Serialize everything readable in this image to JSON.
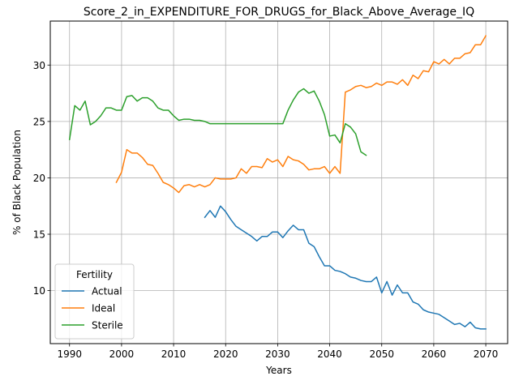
{
  "chart_data": {
    "type": "line",
    "title": "Score_2_in_EXPENDITURE_FOR_DRUGS_for_Black_Above_Average_IQ",
    "xlabel": "Years",
    "ylabel": "% of Black Population",
    "xlim": [
      1986.3,
      2074.2
    ],
    "ylim": [
      5.3,
      33.9
    ],
    "xticks": [
      1990,
      2000,
      2010,
      2020,
      2030,
      2040,
      2050,
      2060,
      2070
    ],
    "yticks": [
      10,
      15,
      20,
      25,
      30
    ],
    "grid": true,
    "legend": {
      "title": "Fertility",
      "location": "lower-left"
    },
    "series": [
      {
        "name": "Actual",
        "color": "#1f77b4",
        "x": [
          2016,
          2017,
          2018,
          2019,
          2020,
          2021,
          2022,
          2023,
          2024,
          2025,
          2026,
          2027,
          2028,
          2029,
          2030,
          2031,
          2032,
          2033,
          2034,
          2035,
          2036,
          2037,
          2038,
          2039,
          2040,
          2041,
          2042,
          2043,
          2044,
          2045,
          2046,
          2047,
          2048,
          2049,
          2050,
          2051,
          2052,
          2053,
          2054,
          2055,
          2056,
          2057,
          2058,
          2059,
          2060,
          2061,
          2062,
          2063,
          2064,
          2065,
          2066,
          2067,
          2068,
          2069,
          2070
        ],
        "y": [
          16.5,
          17.1,
          16.5,
          17.5,
          17.0,
          16.3,
          15.7,
          15.4,
          15.1,
          14.8,
          14.4,
          14.8,
          14.8,
          15.2,
          15.2,
          14.7,
          15.3,
          15.8,
          15.4,
          15.4,
          14.2,
          13.9,
          13.0,
          12.2,
          12.2,
          11.8,
          11.7,
          11.5,
          11.2,
          11.1,
          10.9,
          10.8,
          10.8,
          11.2,
          9.8,
          10.8,
          9.6,
          10.5,
          9.8,
          9.8,
          9.0,
          8.8,
          8.3,
          8.1,
          8.0,
          7.9,
          7.6,
          7.3,
          7.0,
          7.1,
          6.8,
          7.2,
          6.7,
          6.6,
          6.6
        ]
      },
      {
        "name": "Ideal",
        "color": "#ff7f0e",
        "x": [
          1999,
          2000,
          2001,
          2002,
          2003,
          2004,
          2005,
          2006,
          2007,
          2008,
          2009,
          2010,
          2011,
          2012,
          2013,
          2014,
          2015,
          2016,
          2017,
          2018,
          2019,
          2020,
          2021,
          2022,
          2023,
          2024,
          2025,
          2026,
          2027,
          2028,
          2029,
          2030,
          2031,
          2032,
          2033,
          2034,
          2035,
          2036,
          2037,
          2038,
          2039,
          2040,
          2041,
          2042,
          2043,
          2044,
          2045,
          2046,
          2047,
          2048,
          2049,
          2050,
          2051,
          2052,
          2053,
          2054,
          2055,
          2056,
          2057,
          2058,
          2059,
          2060,
          2061,
          2062,
          2063,
          2064,
          2065,
          2066,
          2067,
          2068,
          2069,
          2070
        ],
        "y": [
          19.6,
          20.5,
          22.5,
          22.2,
          22.2,
          21.8,
          21.2,
          21.1,
          20.4,
          19.6,
          19.4,
          19.1,
          18.7,
          19.3,
          19.4,
          19.2,
          19.4,
          19.2,
          19.4,
          20.0,
          19.9,
          19.9,
          19.9,
          20.0,
          20.8,
          20.4,
          21.0,
          21.0,
          20.9,
          21.7,
          21.4,
          21.6,
          21.0,
          21.9,
          21.6,
          21.5,
          21.2,
          20.7,
          20.8,
          20.8,
          21.0,
          20.4,
          21.0,
          20.4,
          27.6,
          27.8,
          28.1,
          28.2,
          28.0,
          28.1,
          28.4,
          28.2,
          28.5,
          28.5,
          28.3,
          28.7,
          28.2,
          29.1,
          28.8,
          29.5,
          29.4,
          30.3,
          30.1,
          30.5,
          30.1,
          30.6,
          30.6,
          31.0,
          31.1,
          31.8,
          31.8,
          32.6
        ]
      },
      {
        "name": "Sterile",
        "color": "#2ca02c",
        "x": [
          1990,
          1991,
          1992,
          1993,
          1994,
          1995,
          1996,
          1997,
          1998,
          1999,
          2000,
          2001,
          2002,
          2003,
          2004,
          2005,
          2006,
          2007,
          2008,
          2009,
          2010,
          2011,
          2012,
          2013,
          2014,
          2015,
          2016,
          2017,
          2018,
          2019,
          2020,
          2021,
          2022,
          2023,
          2024,
          2025,
          2026,
          2027,
          2028,
          2029,
          2030,
          2031,
          2032,
          2033,
          2034,
          2035,
          2036,
          2037,
          2038,
          2039,
          2040,
          2041,
          2042,
          2043,
          2044,
          2045,
          2046,
          2047
        ],
        "y": [
          23.4,
          26.4,
          26.0,
          26.8,
          24.7,
          25.0,
          25.5,
          26.2,
          26.2,
          26.0,
          26.0,
          27.2,
          27.3,
          26.8,
          27.1,
          27.1,
          26.8,
          26.2,
          26.0,
          26.0,
          25.5,
          25.1,
          25.2,
          25.2,
          25.1,
          25.1,
          25.0,
          24.8,
          24.8,
          24.8,
          24.8,
          24.8,
          24.8,
          24.8,
          24.8,
          24.8,
          24.8,
          24.8,
          24.8,
          24.8,
          24.8,
          24.8,
          26.0,
          26.9,
          27.6,
          27.9,
          27.5,
          27.7,
          26.8,
          25.6,
          23.7,
          23.8,
          23.1,
          24.8,
          24.5,
          23.9,
          22.3,
          22.0
        ]
      }
    ]
  }
}
